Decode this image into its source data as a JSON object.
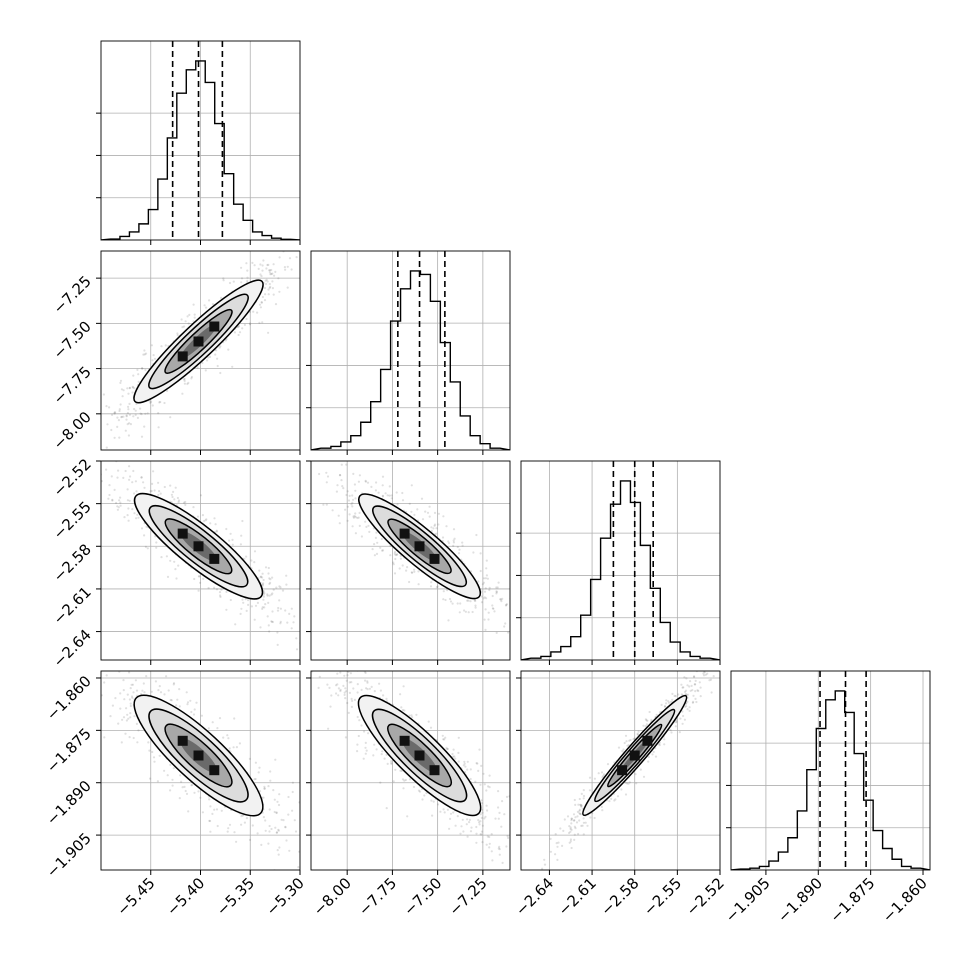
{
  "chart_data": {
    "type": "corner",
    "grid": true,
    "legend": "none",
    "params": [
      {
        "range": [
          -5.5,
          -5.3
        ],
        "ticks": [
          -5.45,
          -5.4,
          -5.35,
          -5.3
        ],
        "tick_labels": [
          "−5.45",
          "−5.40",
          "−5.35",
          "−5.30"
        ],
        "quantiles": [
          -5.428,
          -5.402,
          -5.378
        ],
        "hist": [
          0.005,
          0.02,
          0.045,
          0.09,
          0.17,
          0.34,
          0.57,
          0.82,
          0.95,
          1.0,
          0.88,
          0.65,
          0.37,
          0.2,
          0.11,
          0.045,
          0.025,
          0.01,
          0.004
        ]
      },
      {
        "range": [
          -8.2,
          -7.1
        ],
        "ticks": [
          -8.0,
          -7.75,
          -7.5,
          -7.25
        ],
        "tick_labels": [
          "−8.00",
          "−7.75",
          "−7.50",
          "−7.25"
        ],
        "quantiles": [
          -7.72,
          -7.6,
          -7.46
        ],
        "hist": [
          0.01,
          0.02,
          0.045,
          0.08,
          0.155,
          0.27,
          0.45,
          0.72,
          0.9,
          1.0,
          0.98,
          0.83,
          0.6,
          0.38,
          0.19,
          0.08,
          0.035,
          0.01
        ]
      },
      {
        "range": [
          -2.66,
          -2.52
        ],
        "ticks": [
          -2.64,
          -2.61,
          -2.58,
          -2.55,
          -2.52
        ],
        "tick_labels": [
          "−2.64",
          "−2.61",
          "−2.58",
          "−2.55",
          "−2.52"
        ],
        "quantiles": [
          -2.595,
          -2.58,
          -2.567
        ],
        "hist": [
          0.01,
          0.02,
          0.045,
          0.075,
          0.13,
          0.25,
          0.45,
          0.68,
          0.87,
          1.0,
          0.88,
          0.64,
          0.4,
          0.21,
          0.1,
          0.045,
          0.02,
          0.01
        ]
      },
      {
        "range": [
          -1.915,
          -1.858
        ],
        "ticks": [
          -1.905,
          -1.89,
          -1.875,
          -1.86
        ],
        "tick_labels": [
          "−1.905",
          "−1.890",
          "−1.875",
          "−1.860"
        ],
        "quantiles": [
          -1.8895,
          -1.8822,
          -1.8763
        ],
        "hist": [
          0.005,
          0.01,
          0.02,
          0.05,
          0.1,
          0.18,
          0.33,
          0.56,
          0.79,
          0.95,
          1.0,
          0.88,
          0.65,
          0.39,
          0.22,
          0.12,
          0.06,
          0.02,
          0.01
        ]
      }
    ],
    "correlations": {
      "1_0": 0.93,
      "2_0": -0.88,
      "2_1": -0.9,
      "3_0": -0.85,
      "3_1": -0.87,
      "3_2": 0.97
    }
  }
}
